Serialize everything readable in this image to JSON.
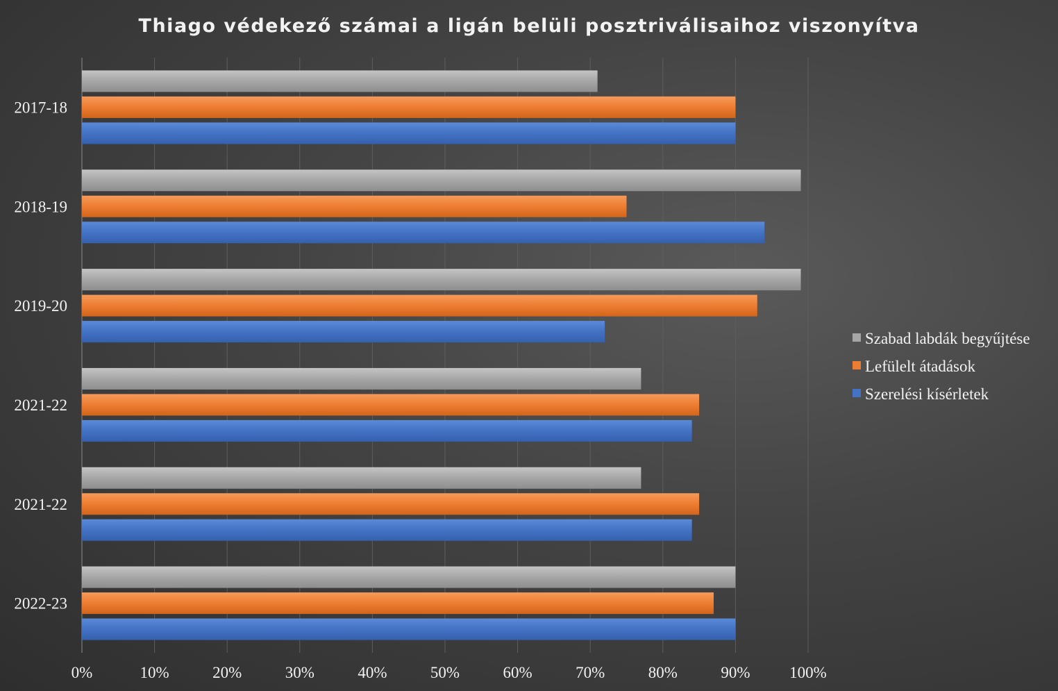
{
  "chart_data": {
    "type": "bar",
    "orientation": "horizontal",
    "title": "Thiago védekező számai a ligán belüli posztriválisaihoz viszonyítva",
    "categories": [
      "2017-18",
      "2018-19",
      "2019-20",
      "2021-22",
      "2021-22",
      "2022-23"
    ],
    "series": [
      {
        "name": "Szabad labdák begyűjtése",
        "color": "#a6a6a6",
        "values": [
          71,
          99,
          99,
          77,
          77,
          90
        ]
      },
      {
        "name": "Lefülelt átadások",
        "color": "#ed7d31",
        "values": [
          90,
          75,
          93,
          85,
          85,
          87
        ]
      },
      {
        "name": "Szerelési kísérletek",
        "color": "#4472c4",
        "values": [
          90,
          94,
          72,
          84,
          84,
          90
        ]
      }
    ],
    "x_ticks": [
      "0%",
      "10%",
      "20%",
      "30%",
      "40%",
      "50%",
      "60%",
      "70%",
      "80%",
      "90%",
      "100%"
    ],
    "xlim": [
      0,
      100
    ],
    "xlabel": "",
    "ylabel": "",
    "grid": true,
    "legend_position": "right"
  }
}
